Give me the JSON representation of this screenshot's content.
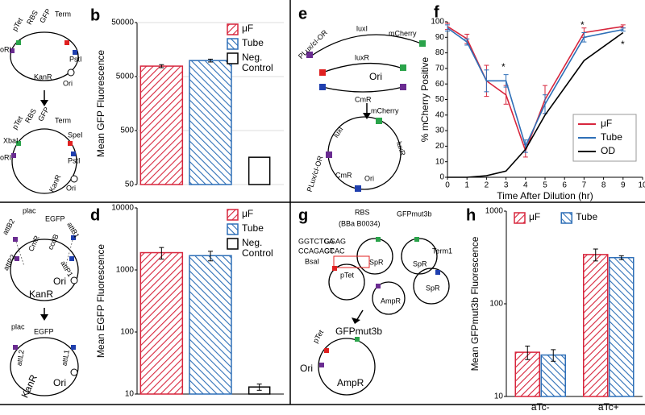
{
  "panels": [
    "a",
    "b",
    "c",
    "d",
    "e",
    "f",
    "g",
    "h"
  ],
  "chart_data": [
    {
      "type": "bar",
      "y_label": "Mean GFP Fluorescence",
      "log_y": true,
      "ylim": [
        50,
        50000
      ],
      "yticks": [
        50,
        500,
        5000,
        50000
      ],
      "grid": true,
      "legend": "upper right",
      "series": [
        {
          "name": "μF",
          "color": "#d7263d",
          "hatch": "forward",
          "values": [
            7800
          ],
          "errors": [
            500
          ]
        },
        {
          "name": "Tube",
          "color": "#2e6fb7",
          "hatch": "back",
          "values": [
            9900
          ],
          "errors": [
            600
          ]
        },
        {
          "name": "Neg. Control",
          "color": "#000000",
          "hatch": "none",
          "values": [
            160
          ]
        }
      ]
    },
    {
      "type": "bar",
      "y_label": "Mean EGFP Fluorescence",
      "log_y": true,
      "ylim": [
        10,
        10000
      ],
      "yticks": [
        10,
        100,
        1000,
        10000
      ],
      "grid": false,
      "legend": "upper right",
      "series": [
        {
          "name": "μF",
          "color": "#d7263d",
          "hatch": "forward",
          "values": [
            1900
          ],
          "errors": [
            400
          ]
        },
        {
          "name": "Tube",
          "color": "#2e6fb7",
          "hatch": "back",
          "values": [
            1700
          ],
          "errors": [
            300
          ]
        },
        {
          "name": "Neg. Control",
          "color": "#000000",
          "hatch": "none",
          "values": [
            13
          ],
          "errors": [
            1.5
          ]
        }
      ]
    },
    {
      "type": "line",
      "x_label": "Time After Dilution (hr)",
      "y_label": "% mCherry Positive",
      "log_y": false,
      "x": [
        0,
        1,
        2,
        3,
        4,
        5,
        7,
        9
      ],
      "xlim": [
        0,
        10
      ],
      "xticks": [
        0,
        1,
        2,
        3,
        4,
        5,
        6,
        7,
        8,
        9,
        10
      ],
      "ylim": [
        0,
        100
      ],
      "yticks": [
        0,
        10,
        20,
        30,
        40,
        50,
        60,
        70,
        80,
        90,
        100
      ],
      "legend": "lower right",
      "series": [
        {
          "name": "μF",
          "color": "#d7263d",
          "values": [
            97,
            89,
            62,
            53,
            17,
            50,
            93,
            97
          ],
          "errors": [
            2,
            3,
            10,
            6,
            4,
            9,
            3,
            1
          ]
        },
        {
          "name": "Tube",
          "color": "#2e6fb7",
          "values": [
            96,
            87,
            62,
            62,
            20,
            47,
            90,
            95
          ],
          "errors": [
            2,
            2,
            7,
            4,
            4,
            6,
            3,
            1
          ]
        },
        {
          "name": "OD",
          "color": "#000000",
          "values": [
            0,
            0,
            1,
            4,
            18,
            40,
            75,
            93
          ]
        }
      ],
      "annotations": [
        "*",
        "*",
        "*"
      ]
    },
    {
      "type": "bar",
      "y_label": "Mean GFPmut3b Fluorescence",
      "log_y": true,
      "ylim": [
        10,
        1000
      ],
      "yticks": [
        10,
        100,
        1000
      ],
      "grid": false,
      "legend": "upper left",
      "categories": [
        "aTc-",
        "aTc+"
      ],
      "series": [
        {
          "name": "μF",
          "color": "#d7263d",
          "hatch": "forward",
          "values": [
            30,
            340
          ],
          "errors": [
            5,
            50
          ]
        },
        {
          "name": "Tube",
          "color": "#2e6fb7",
          "hatch": "back",
          "values": [
            28,
            315
          ],
          "errors": [
            4,
            15
          ]
        }
      ]
    }
  ],
  "diagram_a": [
    "pTet",
    "RBS",
    "GFP",
    "Term",
    "oRI",
    "PstI",
    "KanR",
    "Ori",
    "pTet",
    "RBS",
    "GFP",
    "Term",
    "XbaI",
    "SpeI",
    "oRI",
    "PstI",
    "KanR",
    "Ori"
  ],
  "diagram_c": [
    "plac",
    "EGFP",
    "attB2",
    "attB1",
    "CmR",
    "ccdB",
    "attP2",
    "attP1",
    "KanR",
    "Ori",
    "plac",
    "EGFP",
    "attL2",
    "attL1",
    "Ori",
    "KanR"
  ],
  "diagram_e": [
    "PLux/cI-OR",
    "luxI",
    "mCherry",
    "luxR",
    "Ori",
    "CmR",
    "mCherry",
    "luxI",
    "PLux/cI-OR",
    "luxR",
    "CmR",
    "Ori"
  ],
  "diagram_g": [
    "RBS",
    "(BBa B0034)",
    "GFPmut3b",
    "GGTCTCA",
    "GGAG",
    "CCAGAGT",
    "CCAC",
    "BsaI",
    "SpR",
    "SpR",
    "Term1",
    "pTet",
    "SpR",
    "AmpR",
    "pTet",
    "GFPmut3b",
    "Ori",
    "AmpR"
  ]
}
